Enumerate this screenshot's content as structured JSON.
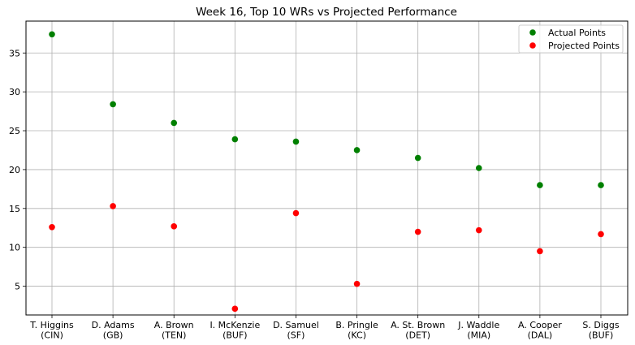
{
  "chart_data": {
    "type": "scatter",
    "title": "Week 16, Top 10 WRs vs Projected Performance",
    "xlabel": "",
    "ylabel": "",
    "categories": [
      [
        "T. Higgins",
        "(CIN)"
      ],
      [
        "D. Adams",
        "(GB)"
      ],
      [
        "A. Brown",
        "(TEN)"
      ],
      [
        "I. McKenzie",
        "(BUF)"
      ],
      [
        "D. Samuel",
        "(SF)"
      ],
      [
        "B. Pringle",
        "(KC)"
      ],
      [
        "A. St. Brown",
        "(DET)"
      ],
      [
        "J. Waddle",
        "(MIA)"
      ],
      [
        "A. Cooper",
        "(DAL)"
      ],
      [
        "S. Diggs",
        "(BUF)"
      ]
    ],
    "series": [
      {
        "name": "Actual Points",
        "color": "#008000",
        "values": [
          37.4,
          28.4,
          26.0,
          23.9,
          23.6,
          22.5,
          21.5,
          20.2,
          18.0,
          18.0
        ]
      },
      {
        "name": "Projected Points",
        "color": "#ff0000",
        "values": [
          12.6,
          15.3,
          12.7,
          2.1,
          14.4,
          5.3,
          12.0,
          12.2,
          9.5,
          11.7
        ]
      }
    ],
    "ylim": [
      1.3,
      39.1
    ],
    "yticks": [
      5,
      10,
      15,
      20,
      25,
      30,
      35
    ],
    "grid": true,
    "legend_position": "top-right"
  }
}
